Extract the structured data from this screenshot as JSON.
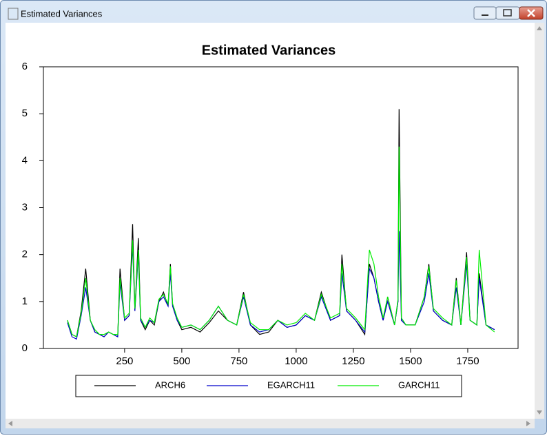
{
  "window": {
    "title": "Estimated Variances"
  },
  "chart_data": {
    "type": "line",
    "title": "Estimated Variances",
    "x": [
      0,
      20,
      40,
      60,
      80,
      100,
      120,
      140,
      160,
      180,
      200,
      220,
      230,
      250,
      270,
      285,
      295,
      310,
      320,
      340,
      360,
      380,
      400,
      420,
      440,
      450,
      460,
      480,
      500,
      540,
      580,
      620,
      660,
      700,
      740,
      770,
      800,
      840,
      880,
      920,
      960,
      1000,
      1040,
      1080,
      1110,
      1150,
      1190,
      1200,
      1220,
      1260,
      1300,
      1320,
      1340,
      1360,
      1380,
      1400,
      1430,
      1445,
      1450,
      1460,
      1480,
      1520,
      1560,
      1580,
      1600,
      1640,
      1680,
      1700,
      1720,
      1745,
      1760,
      1790,
      1800,
      1830,
      1867
    ],
    "series": [
      {
        "name": "ARCH6",
        "color": "#000000",
        "values": [
          0.6,
          0.3,
          0.25,
          0.8,
          1.7,
          0.6,
          0.35,
          0.3,
          0.25,
          0.35,
          0.3,
          0.25,
          1.7,
          0.6,
          0.7,
          2.65,
          0.8,
          2.35,
          0.6,
          0.4,
          0.6,
          0.5,
          1.0,
          1.2,
          0.9,
          1.8,
          0.9,
          0.6,
          0.4,
          0.45,
          0.35,
          0.55,
          0.8,
          0.6,
          0.5,
          1.2,
          0.5,
          0.3,
          0.35,
          0.6,
          0.45,
          0.5,
          0.7,
          0.6,
          1.2,
          0.6,
          0.7,
          2.0,
          0.8,
          0.6,
          0.3,
          1.8,
          1.5,
          1.0,
          0.6,
          1.1,
          0.5,
          1.0,
          5.1,
          0.6,
          0.5,
          0.5,
          1.1,
          1.8,
          0.8,
          0.6,
          0.5,
          1.5,
          0.5,
          2.05,
          0.6,
          0.5,
          1.6,
          0.5,
          0.4
        ]
      },
      {
        "name": "EGARCH11",
        "color": "#0000cc",
        "values": [
          0.55,
          0.25,
          0.2,
          0.7,
          1.3,
          0.6,
          0.35,
          0.3,
          0.25,
          0.35,
          0.3,
          0.25,
          1.4,
          0.6,
          0.7,
          2.2,
          0.8,
          2.0,
          0.6,
          0.45,
          0.6,
          0.55,
          1.0,
          1.1,
          0.9,
          1.6,
          0.9,
          0.6,
          0.45,
          0.5,
          0.4,
          0.6,
          0.9,
          0.6,
          0.5,
          1.1,
          0.5,
          0.35,
          0.4,
          0.6,
          0.45,
          0.5,
          0.7,
          0.6,
          1.1,
          0.6,
          0.7,
          1.6,
          0.8,
          0.6,
          0.35,
          1.7,
          1.5,
          1.0,
          0.6,
          1.0,
          0.5,
          1.0,
          2.5,
          0.6,
          0.5,
          0.5,
          1.0,
          1.6,
          0.8,
          0.6,
          0.5,
          1.3,
          0.5,
          1.8,
          0.6,
          0.5,
          1.5,
          0.5,
          0.4
        ]
      },
      {
        "name": "GARCH11",
        "color": "#00ee00",
        "values": [
          0.6,
          0.3,
          0.25,
          0.75,
          1.5,
          0.6,
          0.4,
          0.3,
          0.3,
          0.35,
          0.3,
          0.3,
          1.5,
          0.65,
          0.75,
          2.3,
          0.85,
          2.1,
          0.65,
          0.45,
          0.65,
          0.55,
          1.05,
          1.15,
          0.95,
          1.75,
          0.95,
          0.65,
          0.45,
          0.5,
          0.4,
          0.6,
          0.9,
          0.6,
          0.5,
          1.15,
          0.55,
          0.4,
          0.4,
          0.6,
          0.5,
          0.55,
          0.75,
          0.6,
          1.15,
          0.65,
          0.75,
          1.8,
          0.85,
          0.65,
          0.4,
          2.1,
          1.8,
          1.1,
          0.65,
          1.1,
          0.5,
          1.05,
          4.3,
          0.65,
          0.5,
          0.5,
          1.1,
          1.75,
          0.85,
          0.65,
          0.5,
          1.45,
          0.5,
          1.95,
          0.6,
          0.5,
          2.1,
          0.5,
          0.35
        ]
      }
    ],
    "xlim": [
      -105,
      1970
    ],
    "xticks": [
      250,
      500,
      750,
      1000,
      1250,
      1500,
      1750
    ],
    "ylim": [
      0,
      6
    ],
    "yticks": [
      0,
      1,
      2,
      3,
      4,
      5,
      6
    ]
  }
}
